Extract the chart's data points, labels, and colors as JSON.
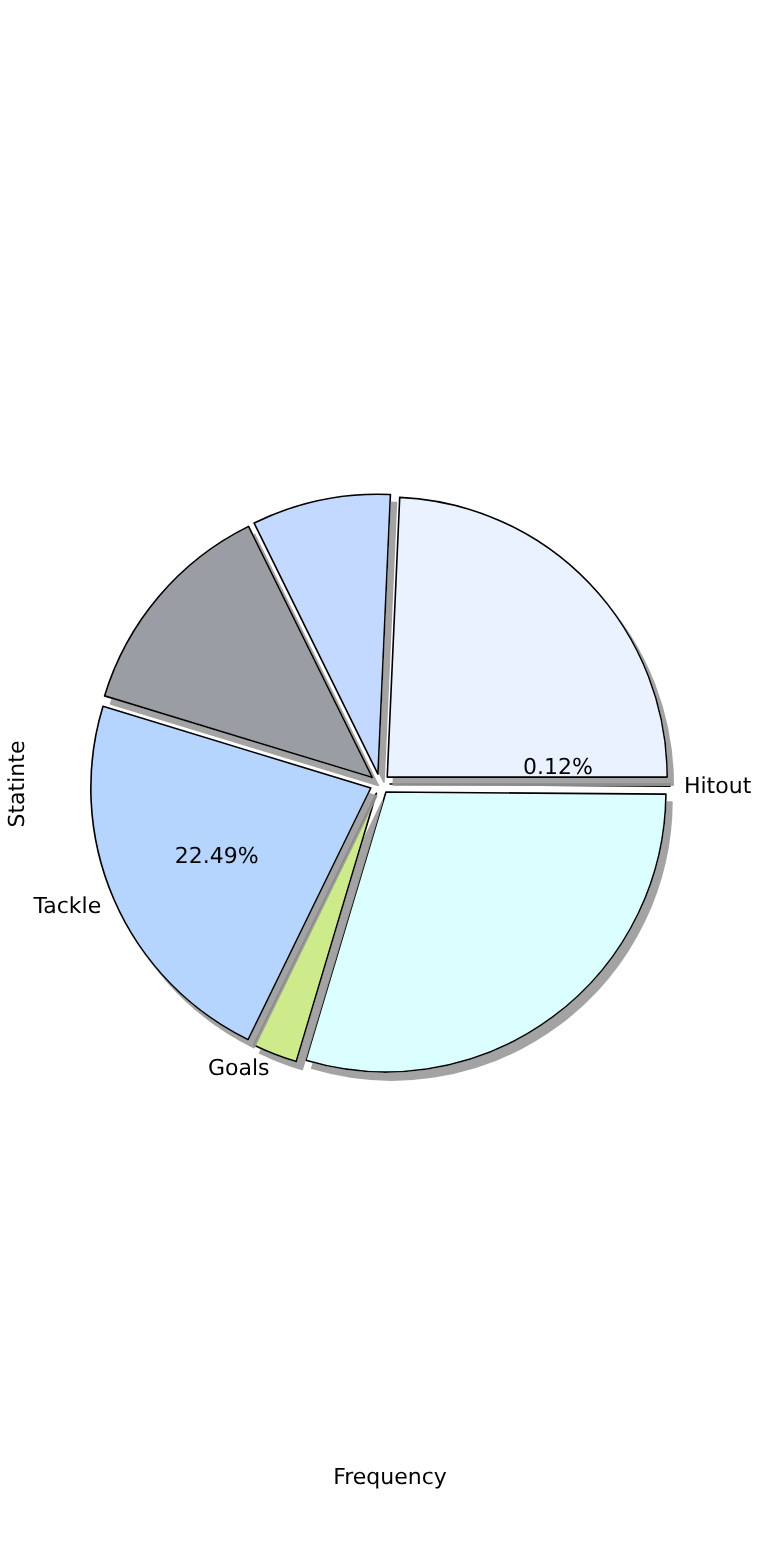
{
  "chart_data": {
    "type": "pie",
    "xlabel": "Frequency",
    "ylabel": "Statinte",
    "categories": [
      "Hitout",
      null,
      "Goals",
      "Tackle",
      null,
      null,
      null
    ],
    "values": [
      0.12,
      29.5,
      2.6,
      22.49,
      13,
      8,
      24.29
    ],
    "colors": [
      "#d8d8d8",
      "#dbffff",
      "#cdeb8b",
      "#b5d5ff",
      "#9a9ea4",
      "#c3d9ff",
      "#eaf1ff"
    ],
    "value_labels": [
      "0.12%",
      null,
      null,
      "22.49%",
      null,
      null,
      null
    ]
  }
}
